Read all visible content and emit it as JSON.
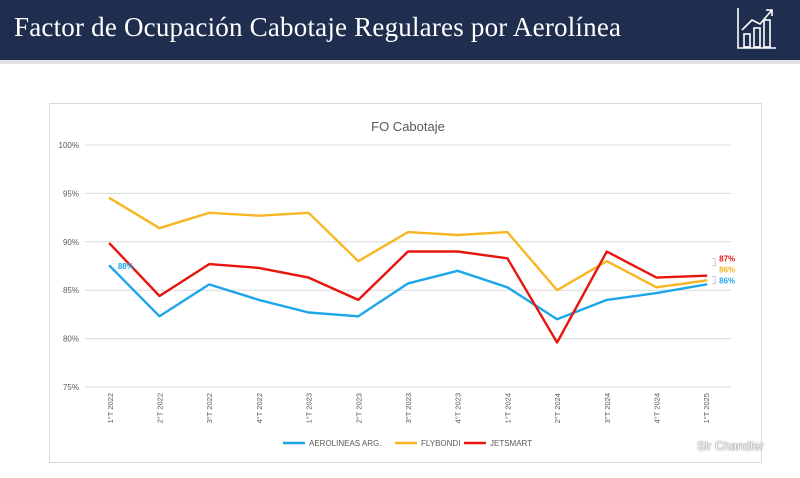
{
  "header": {
    "title": "Factor de Ocupación Cabotaje Regulares por Aerolínea"
  },
  "watermark": "Sir Chandler",
  "chart_data": {
    "type": "line",
    "title": "FO Cabotaje",
    "xlabel": "",
    "ylabel": "",
    "ylim": [
      75,
      100
    ],
    "yticks": [
      75,
      80,
      85,
      90,
      95,
      100
    ],
    "ytick_labels": [
      "75%",
      "80%",
      "85%",
      "90%",
      "95%",
      "100%"
    ],
    "grid": true,
    "legend_position": "bottom",
    "categories": [
      "1°T 2022",
      "2°T 2022",
      "3°T 2022",
      "4°T 2022",
      "1°T 2023",
      "2°T 2023",
      "3°T 2023",
      "4°T 2023",
      "1°T 2024",
      "2°T 2024",
      "3°T 2024",
      "4°T 2024",
      "1°T 2025"
    ],
    "series": [
      {
        "name": "AEROLINEAS ARG.",
        "color": "#1ea7e8",
        "values": [
          87.5,
          82.3,
          85.6,
          84.0,
          82.7,
          82.3,
          85.7,
          87.0,
          85.3,
          82.0,
          84.0,
          84.7,
          85.6
        ],
        "labels": {
          "first": "88%",
          "last": "86%"
        }
      },
      {
        "name": "FLYBONDI",
        "color": "#f7b623",
        "values": [
          94.5,
          91.4,
          93.0,
          92.7,
          93.0,
          88.0,
          91.0,
          90.7,
          91.0,
          85.0,
          88.0,
          85.3,
          86.0
        ],
        "labels": {
          "last": "86%"
        }
      },
      {
        "name": "JETSMART",
        "color": "#e8140e",
        "values": [
          89.8,
          84.4,
          87.7,
          87.3,
          86.3,
          84.0,
          89.0,
          89.0,
          88.3,
          79.6,
          89.0,
          86.3,
          86.5
        ],
        "labels": {
          "last": "87%"
        }
      }
    ]
  }
}
